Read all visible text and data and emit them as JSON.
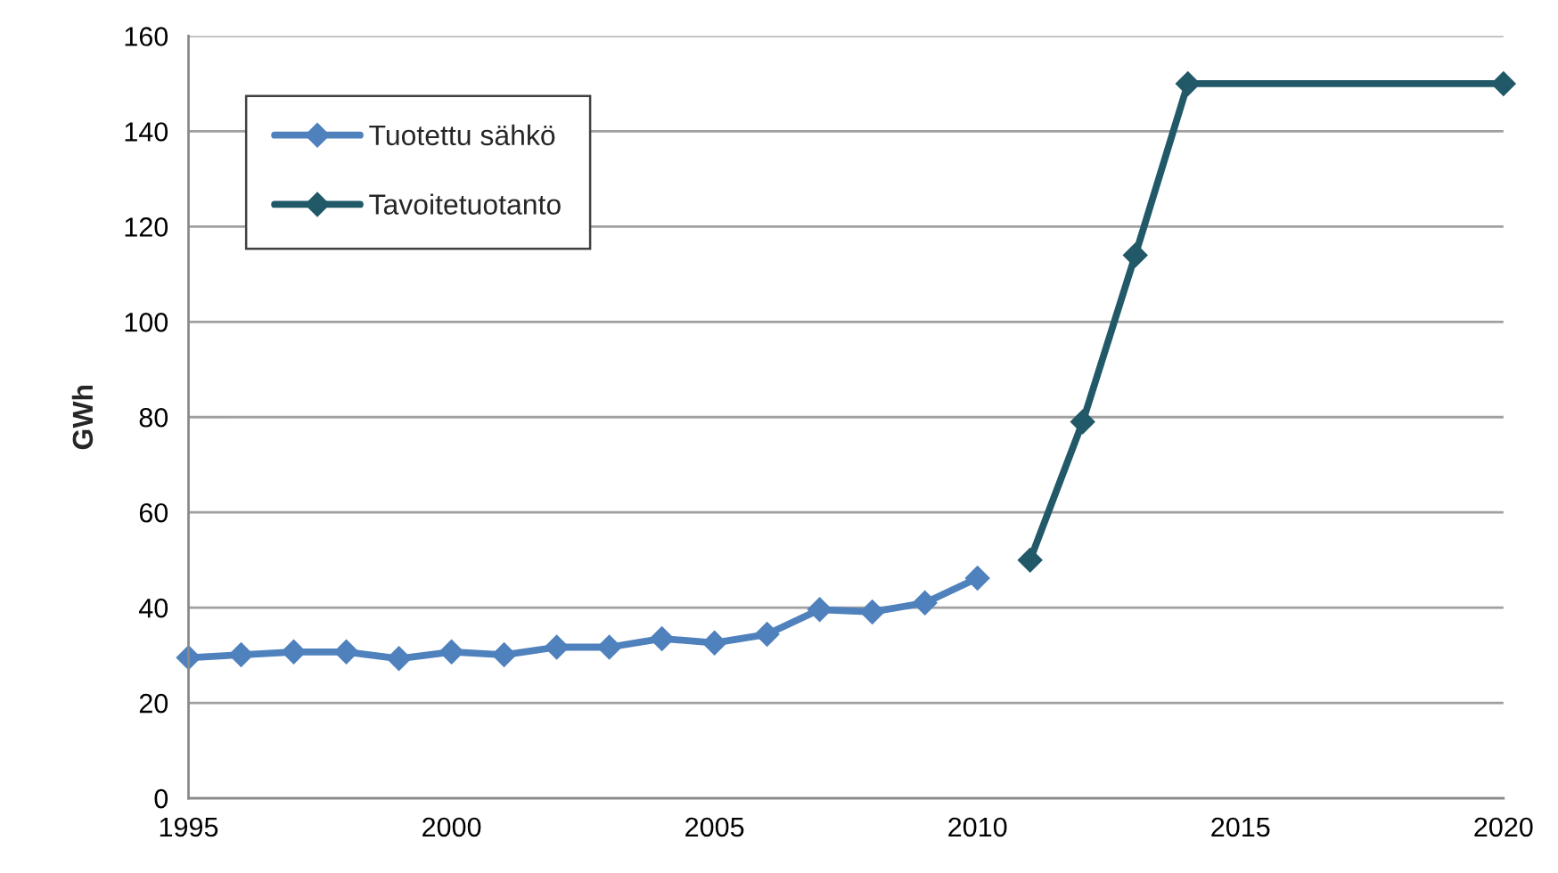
{
  "chart_data": {
    "type": "line",
    "ylabel": "GWh",
    "xlim": [
      1995,
      2020
    ],
    "xticks": [
      1995,
      2000,
      2005,
      2010,
      2015,
      2020
    ],
    "ylim": [
      0,
      160
    ],
    "yticks": [
      0,
      20,
      40,
      60,
      80,
      100,
      120,
      140,
      160
    ],
    "grid": "y",
    "legend": "top left",
    "marker": "diamond",
    "line_style": "solid",
    "series": [
      {
        "name": "Tuotettu sähkö",
        "color": "#4f81bd",
        "x": [
          1995,
          1996,
          1997,
          1998,
          1999,
          2000,
          2001,
          2002,
          2003,
          2004,
          2005,
          2006,
          2007,
          2008,
          2009,
          2010
        ],
        "values": [
          29.5,
          30.1,
          30.7,
          30.7,
          29.3,
          30.7,
          30.1,
          31.7,
          31.7,
          33.5,
          32.6,
          34.4,
          39.6,
          39.1,
          41,
          46.2
        ]
      },
      {
        "name": "Tavoitetuotanto",
        "color": "#215968",
        "x": [
          2011,
          2012,
          2013,
          2014,
          2020
        ],
        "values": [
          50,
          79,
          114,
          150,
          150
        ]
      }
    ]
  }
}
